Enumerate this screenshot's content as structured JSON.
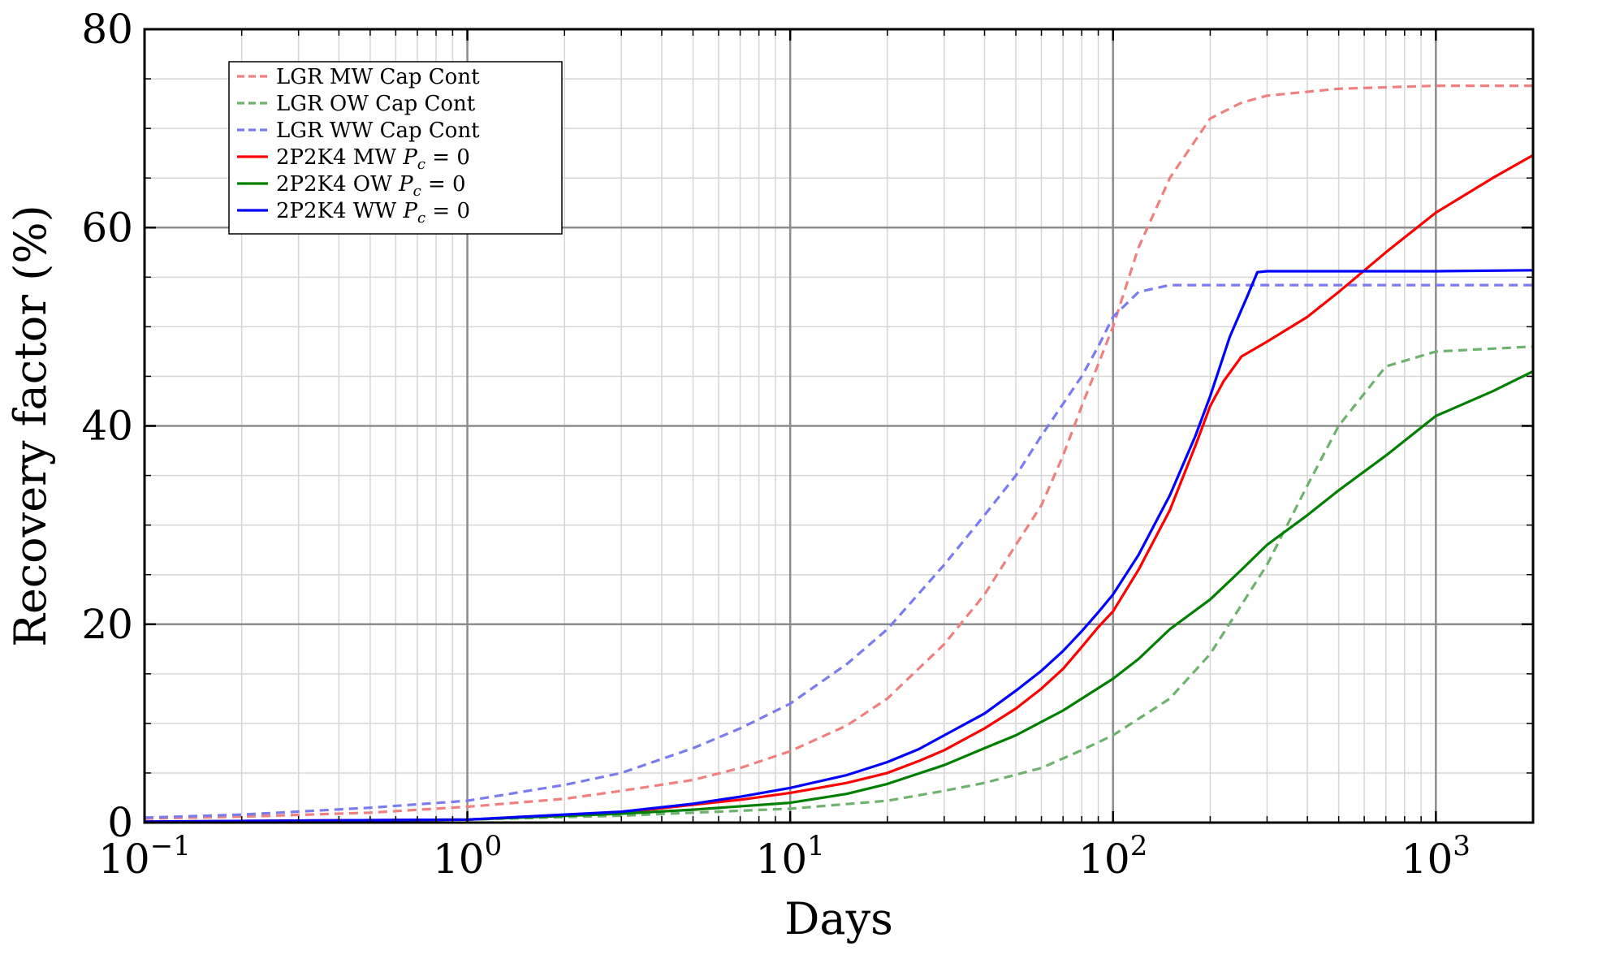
{
  "chart_data": {
    "type": "line",
    "xscale": "log",
    "xlim": [
      0.1,
      2000
    ],
    "ylim": [
      0,
      80
    ],
    "xlabel": "Days",
    "ylabel": "Recovery factor (%)",
    "grid": true,
    "legend_position": "top-left",
    "x_ticks": [
      {
        "value": 0.1,
        "base": "10",
        "exp": "−1"
      },
      {
        "value": 1,
        "base": "10",
        "exp": "0"
      },
      {
        "value": 10,
        "base": "10",
        "exp": "1"
      },
      {
        "value": 100,
        "base": "10",
        "exp": "2"
      },
      {
        "value": 1000,
        "base": "10",
        "exp": "3"
      }
    ],
    "y_ticks": [
      {
        "value": 0,
        "label": "0"
      },
      {
        "value": 20,
        "label": "20"
      },
      {
        "value": 40,
        "label": "40"
      },
      {
        "value": 60,
        "label": "60"
      },
      {
        "value": 80,
        "label": "80"
      }
    ],
    "series": [
      {
        "name": "LGR MW Cap Cont",
        "color": "#f08080",
        "dashed": true,
        "points": [
          [
            0.1,
            0.4
          ],
          [
            0.2,
            0.6
          ],
          [
            0.5,
            1.0
          ],
          [
            1,
            1.6
          ],
          [
            2,
            2.4
          ],
          [
            3,
            3.2
          ],
          [
            5,
            4.3
          ],
          [
            7,
            5.5
          ],
          [
            10,
            7.2
          ],
          [
            15,
            9.8
          ],
          [
            20,
            12.5
          ],
          [
            30,
            18
          ],
          [
            40,
            23
          ],
          [
            50,
            28
          ],
          [
            60,
            32
          ],
          [
            70,
            37
          ],
          [
            80,
            42
          ],
          [
            100,
            50
          ],
          [
            120,
            58
          ],
          [
            150,
            65
          ],
          [
            200,
            71
          ],
          [
            250,
            72.6
          ],
          [
            300,
            73.3
          ],
          [
            500,
            74
          ],
          [
            1000,
            74.3
          ],
          [
            2000,
            74.3
          ]
        ]
      },
      {
        "name": "LGR OW Cap Cont",
        "color": "#6db36d",
        "dashed": true,
        "points": [
          [
            0.1,
            0.1
          ],
          [
            1,
            0.3
          ],
          [
            3,
            0.7
          ],
          [
            5,
            1.0
          ],
          [
            10,
            1.4
          ],
          [
            20,
            2.2
          ],
          [
            30,
            3.2
          ],
          [
            40,
            4.0
          ],
          [
            60,
            5.5
          ],
          [
            80,
            7.3
          ],
          [
            100,
            8.8
          ],
          [
            150,
            12.5
          ],
          [
            200,
            17
          ],
          [
            300,
            26
          ],
          [
            400,
            34
          ],
          [
            500,
            40
          ],
          [
            700,
            46
          ],
          [
            1000,
            47.5
          ],
          [
            2000,
            48
          ]
        ]
      },
      {
        "name": "LGR WW Cap Cont",
        "color": "#7b7bf0",
        "dashed": true,
        "points": [
          [
            0.1,
            0.5
          ],
          [
            0.2,
            0.8
          ],
          [
            0.5,
            1.5
          ],
          [
            1,
            2.2
          ],
          [
            2,
            3.8
          ],
          [
            3,
            5
          ],
          [
            5,
            7.5
          ],
          [
            7,
            9.5
          ],
          [
            10,
            12
          ],
          [
            15,
            16
          ],
          [
            20,
            19.5
          ],
          [
            30,
            26
          ],
          [
            40,
            31
          ],
          [
            50,
            35
          ],
          [
            60,
            39
          ],
          [
            80,
            45
          ],
          [
            90,
            48
          ],
          [
            100,
            51
          ],
          [
            120,
            53.5
          ],
          [
            150,
            54.2
          ],
          [
            300,
            54.2
          ],
          [
            1000,
            54.2
          ],
          [
            2000,
            54.2
          ]
        ]
      },
      {
        "name": "2P2K4 MW P_c = 0",
        "color": "#ff0000",
        "dashed": false,
        "points": [
          [
            0.1,
            0.1
          ],
          [
            1,
            0.3
          ],
          [
            3,
            1.0
          ],
          [
            5,
            1.8
          ],
          [
            7,
            2.3
          ],
          [
            10,
            3.0
          ],
          [
            15,
            4.0
          ],
          [
            20,
            5.0
          ],
          [
            25,
            6.2
          ],
          [
            30,
            7.3
          ],
          [
            40,
            9.5
          ],
          [
            50,
            11.5
          ],
          [
            60,
            13.5
          ],
          [
            70,
            15.5
          ],
          [
            80,
            17.7
          ],
          [
            90,
            19.7
          ],
          [
            100,
            21.3
          ],
          [
            120,
            25.5
          ],
          [
            150,
            31.5
          ],
          [
            180,
            38
          ],
          [
            200,
            42
          ],
          [
            220,
            44.5
          ],
          [
            250,
            47
          ],
          [
            300,
            48.5
          ],
          [
            400,
            51
          ],
          [
            500,
            53.5
          ],
          [
            700,
            57.5
          ],
          [
            1000,
            61.5
          ],
          [
            1500,
            65
          ],
          [
            2000,
            67.3
          ]
        ]
      },
      {
        "name": "2P2K4 OW P_c = 0",
        "color": "#008000",
        "dashed": false,
        "points": [
          [
            0.1,
            0.05
          ],
          [
            1,
            0.3
          ],
          [
            3,
            0.9
          ],
          [
            5,
            1.3
          ],
          [
            10,
            2.0
          ],
          [
            15,
            2.9
          ],
          [
            20,
            3.9
          ],
          [
            30,
            5.8
          ],
          [
            40,
            7.5
          ],
          [
            50,
            8.8
          ],
          [
            70,
            11.3
          ],
          [
            100,
            14.5
          ],
          [
            120,
            16.5
          ],
          [
            150,
            19.5
          ],
          [
            200,
            22.5
          ],
          [
            250,
            25.5
          ],
          [
            300,
            28
          ],
          [
            400,
            31
          ],
          [
            500,
            33.5
          ],
          [
            700,
            37
          ],
          [
            1000,
            41
          ],
          [
            1500,
            43.5
          ],
          [
            2000,
            45.5
          ]
        ]
      },
      {
        "name": "2P2K4 WW P_c = 0",
        "color": "#0000ff",
        "dashed": false,
        "points": [
          [
            0.1,
            0.1
          ],
          [
            1,
            0.3
          ],
          [
            3,
            1.1
          ],
          [
            5,
            1.9
          ],
          [
            7,
            2.6
          ],
          [
            10,
            3.5
          ],
          [
            15,
            4.8
          ],
          [
            20,
            6.1
          ],
          [
            25,
            7.4
          ],
          [
            30,
            8.8
          ],
          [
            40,
            11.0
          ],
          [
            50,
            13.3
          ],
          [
            60,
            15.3
          ],
          [
            70,
            17.3
          ],
          [
            80,
            19.3
          ],
          [
            90,
            21.2
          ],
          [
            100,
            23
          ],
          [
            120,
            27
          ],
          [
            150,
            33
          ],
          [
            180,
            39
          ],
          [
            200,
            43
          ],
          [
            230,
            49
          ],
          [
            260,
            53
          ],
          [
            280,
            55.5
          ],
          [
            300,
            55.6
          ],
          [
            500,
            55.6
          ],
          [
            1000,
            55.6
          ],
          [
            2000,
            55.7
          ]
        ]
      }
    ]
  }
}
